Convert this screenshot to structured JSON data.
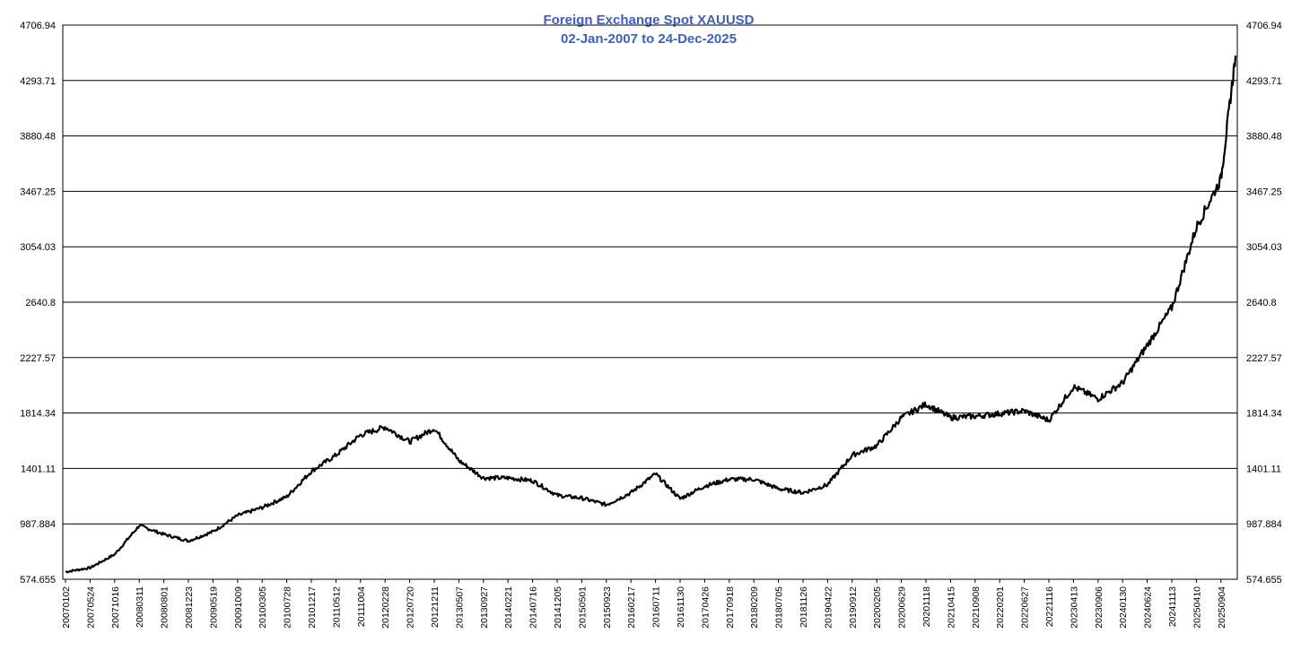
{
  "chart_data": {
    "type": "line",
    "title": "Foreign Exchange Spot XAUUSD",
    "subtitle": "02-Jan-2007 to 24-Dec-2025",
    "xlabel": "",
    "ylabel": "",
    "grid": true,
    "ylim": [
      574.655,
      4706.94
    ],
    "y_ticks": [
      "4706.94",
      "4293.71",
      "3880.48",
      "3467.25",
      "3054.03",
      "2640.8",
      "2227.57",
      "1814.34",
      "1401.11",
      "987.884",
      "574.655"
    ],
    "y_tick_values": [
      4706.94,
      4293.71,
      3880.48,
      3467.25,
      3054.03,
      2640.8,
      2227.57,
      1814.34,
      1401.11,
      987.884,
      574.655
    ],
    "x_ticks": [
      "20070102",
      "20070524",
      "20071016",
      "20080311",
      "20080801",
      "20081223",
      "20090519",
      "20091009",
      "20100305",
      "20100728",
      "20101217",
      "20110512",
      "20111004",
      "20120228",
      "20120720",
      "20121211",
      "20130507",
      "20130927",
      "20140221",
      "20140716",
      "20141205",
      "20150501",
      "20150923",
      "20160217",
      "20160711",
      "20161130",
      "20170426",
      "20170918",
      "20180209",
      "20180705",
      "20181126",
      "20190422",
      "20190912",
      "20200205",
      "20200629",
      "20201118",
      "20210415",
      "20210908",
      "20220201",
      "20220627",
      "20221116",
      "20230413",
      "20230906",
      "20240130",
      "20240624",
      "20241113",
      "20250410",
      "20250904"
    ],
    "series": [
      {
        "name": "XAUUSD",
        "x": [
          "20070102",
          "20070524",
          "20071016",
          "20080311",
          "20080801",
          "20081223",
          "20090519",
          "20091009",
          "20100305",
          "20100728",
          "20101217",
          "20110512",
          "20111004",
          "20120228",
          "20120720",
          "20121211",
          "20130507",
          "20130927",
          "20140221",
          "20140716",
          "20141205",
          "20150501",
          "20150923",
          "20160217",
          "20160711",
          "20161130",
          "20170426",
          "20170918",
          "20180209",
          "20180705",
          "20181126",
          "20190422",
          "20190912",
          "20200205",
          "20200629",
          "20201118",
          "20210415",
          "20210908",
          "20220201",
          "20220627",
          "20221116",
          "20230413",
          "20230906",
          "20240130",
          "20240624",
          "20241113",
          "20250410",
          "20250904",
          "20251224"
        ],
        "values": [
          630,
          660,
          760,
          975,
          910,
          860,
          930,
          1050,
          1110,
          1190,
          1380,
          1500,
          1650,
          1710,
          1600,
          1700,
          1460,
          1330,
          1330,
          1310,
          1200,
          1180,
          1130,
          1220,
          1360,
          1175,
          1270,
          1320,
          1320,
          1250,
          1220,
          1280,
          1500,
          1570,
          1780,
          1880,
          1780,
          1790,
          1810,
          1830,
          1760,
          2010,
          1920,
          2040,
          2320,
          2600,
          3200,
          3560,
          4480
        ]
      }
    ]
  }
}
